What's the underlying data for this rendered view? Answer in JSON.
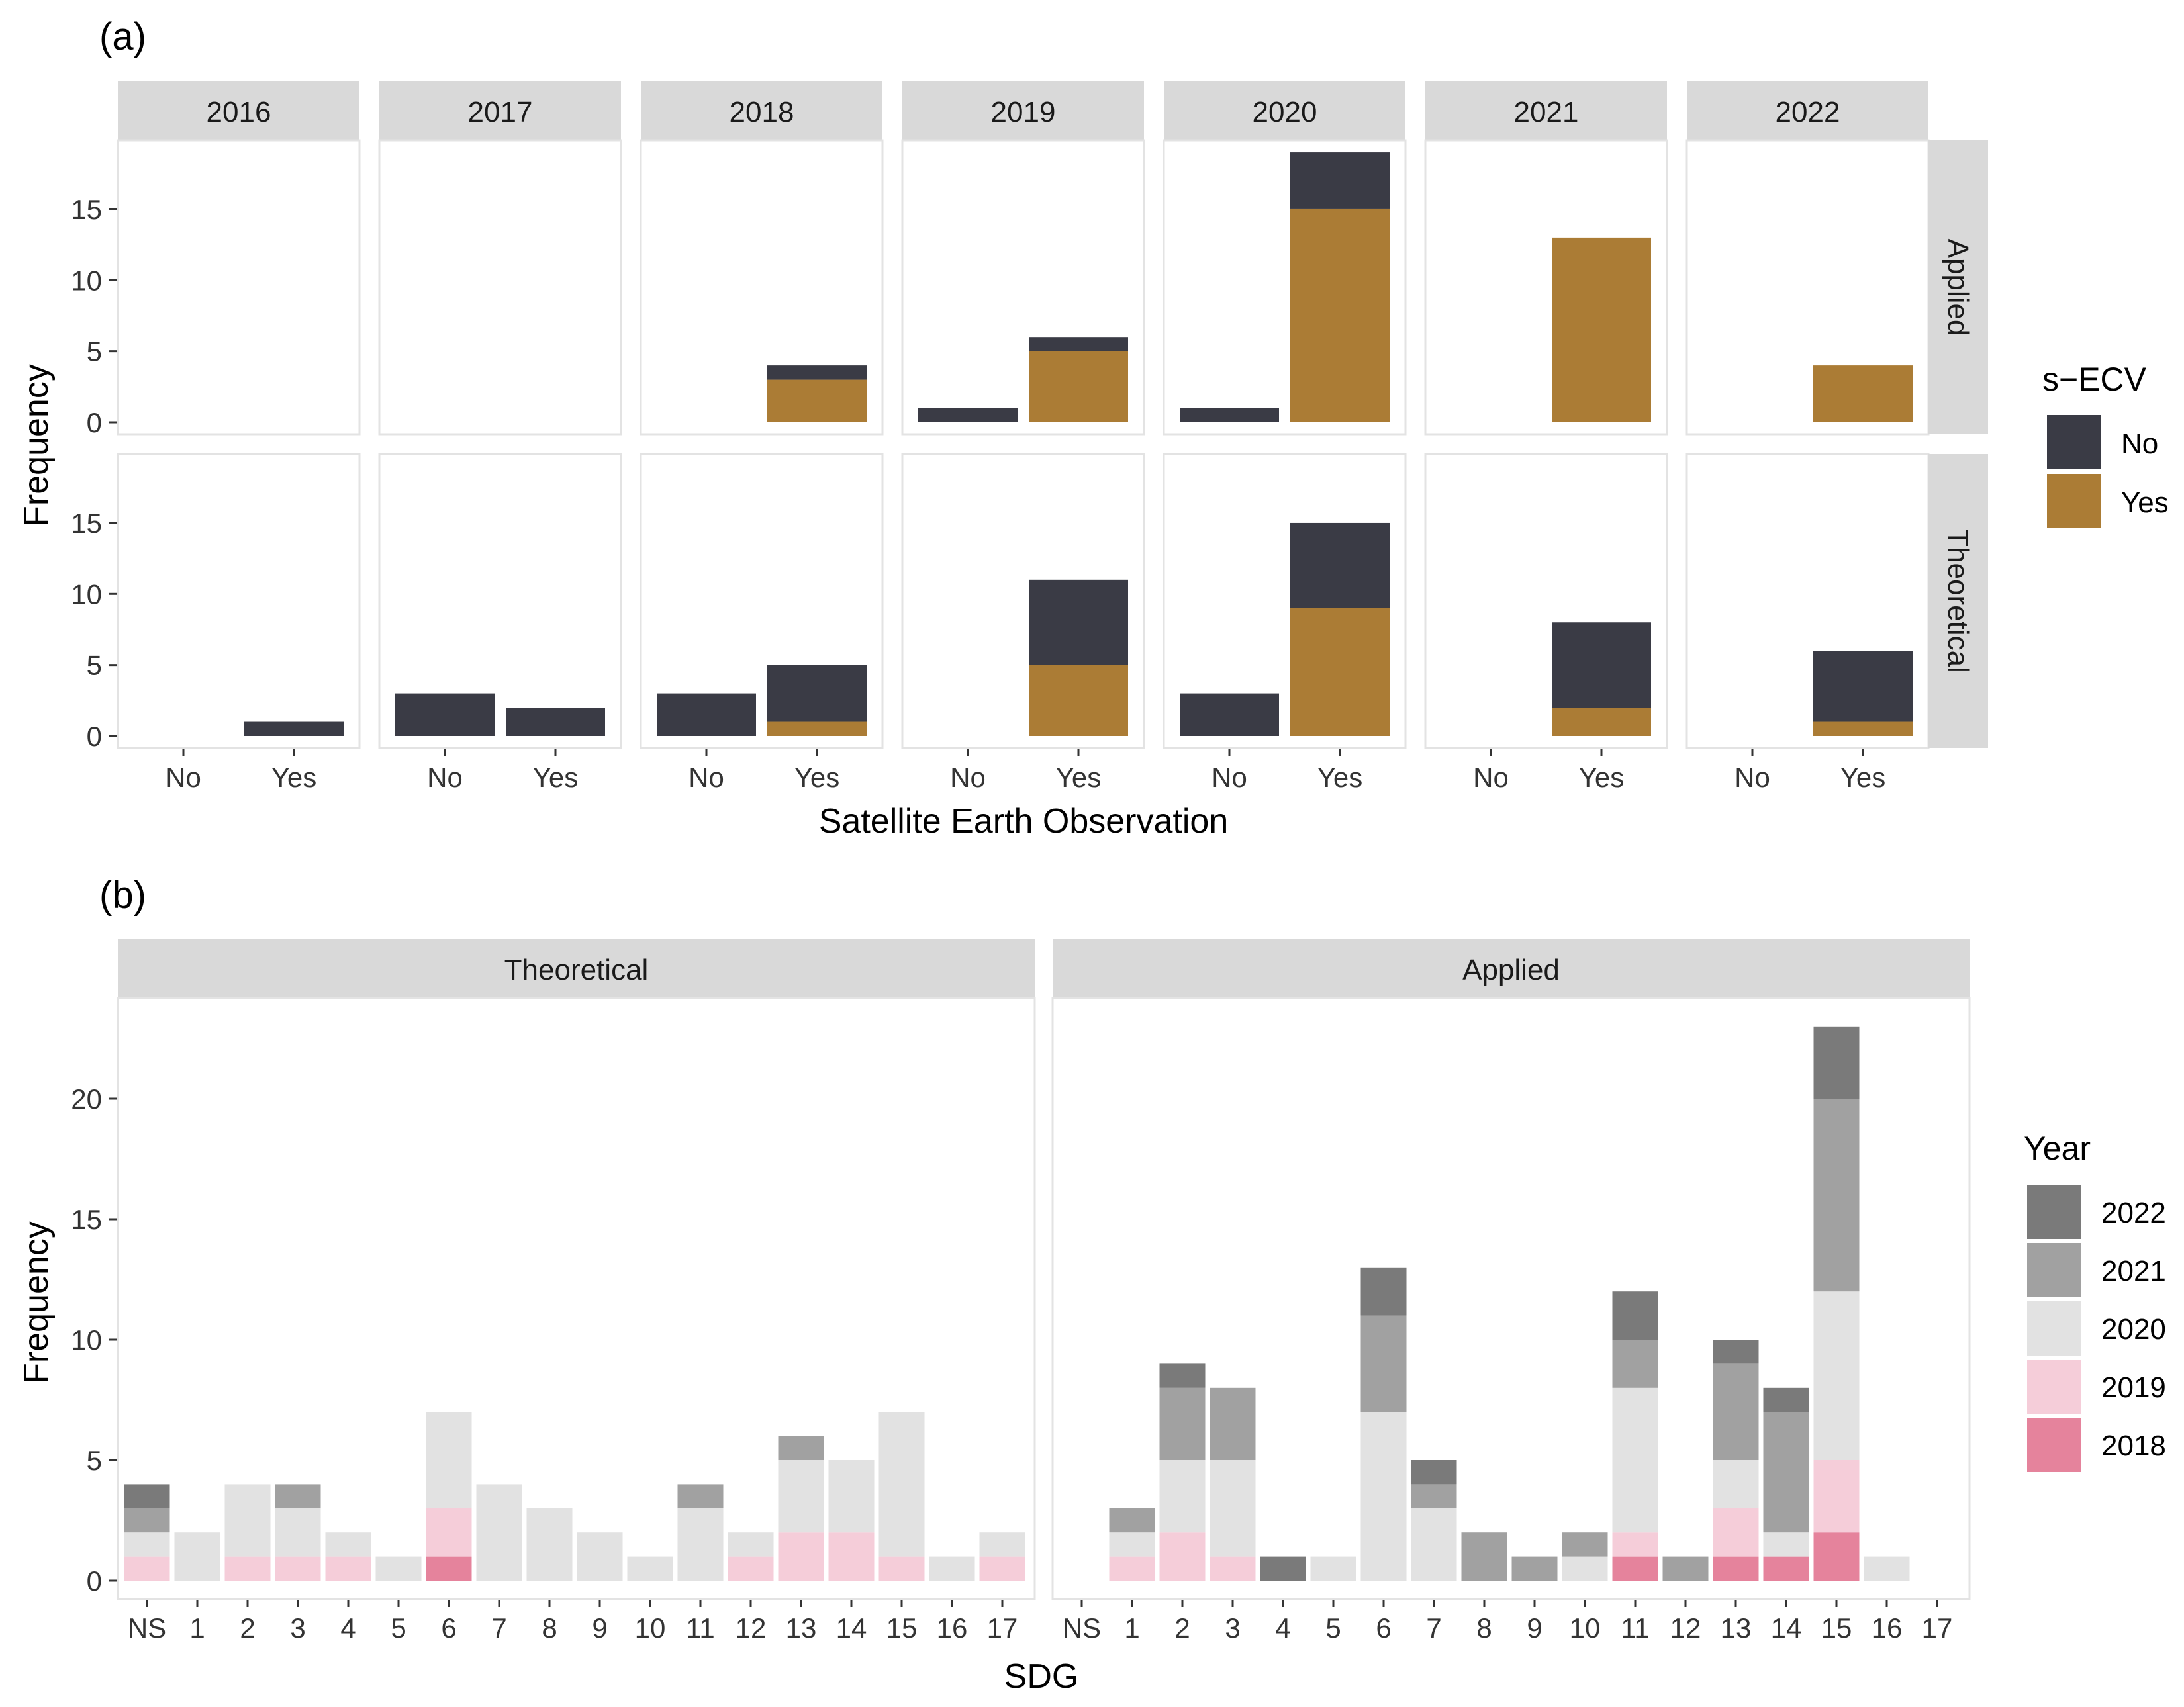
{
  "figure": {
    "panel_a_tag": "(a)",
    "panel_b_tag": "(b)"
  },
  "colors": {
    "no": "#3a3b45",
    "yes": "#ab7c35",
    "y2022": "#7a7a7a",
    "y2021": "#a1a1a1",
    "y2020": "#e2e2e2",
    "y2019": "#f5cdd9",
    "y2018": "#e5839c"
  },
  "chart_data": [
    {
      "type": "bar",
      "stacked": true,
      "title": "(a)",
      "xlabel": "Satellite Earth Observation",
      "ylabel": "Frequency",
      "ylim": [
        0,
        19.5
      ],
      "yticks": [
        0,
        5,
        10,
        15
      ],
      "facet_cols": [
        "2016",
        "2017",
        "2018",
        "2019",
        "2020",
        "2021",
        "2022"
      ],
      "facet_rows": [
        "Applied",
        "Theoretical"
      ],
      "categories": [
        "No",
        "Yes"
      ],
      "legend": {
        "title": "s−ECV",
        "labels": [
          "No",
          "Yes"
        ],
        "position": "right"
      },
      "panels": [
        {
          "year": "2016",
          "study": "Applied",
          "bars": [
            {
              "x": "No",
              "No": 0,
              "Yes": 0
            },
            {
              "x": "Yes",
              "No": 0,
              "Yes": 0
            }
          ]
        },
        {
          "year": "2017",
          "study": "Applied",
          "bars": [
            {
              "x": "No",
              "No": 0,
              "Yes": 0
            },
            {
              "x": "Yes",
              "No": 0,
              "Yes": 0
            }
          ]
        },
        {
          "year": "2018",
          "study": "Applied",
          "bars": [
            {
              "x": "No",
              "No": 0,
              "Yes": 0
            },
            {
              "x": "Yes",
              "No": 1,
              "Yes": 3
            }
          ]
        },
        {
          "year": "2019",
          "study": "Applied",
          "bars": [
            {
              "x": "No",
              "No": 1,
              "Yes": 0
            },
            {
              "x": "Yes",
              "No": 1,
              "Yes": 5
            }
          ]
        },
        {
          "year": "2020",
          "study": "Applied",
          "bars": [
            {
              "x": "No",
              "No": 1,
              "Yes": 0
            },
            {
              "x": "Yes",
              "No": 4,
              "Yes": 15
            }
          ]
        },
        {
          "year": "2021",
          "study": "Applied",
          "bars": [
            {
              "x": "No",
              "No": 0,
              "Yes": 0
            },
            {
              "x": "Yes",
              "No": 0,
              "Yes": 13
            }
          ]
        },
        {
          "year": "2022",
          "study": "Applied",
          "bars": [
            {
              "x": "No",
              "No": 0,
              "Yes": 0
            },
            {
              "x": "Yes",
              "No": 0,
              "Yes": 4
            }
          ]
        },
        {
          "year": "2016",
          "study": "Theoretical",
          "bars": [
            {
              "x": "No",
              "No": 0,
              "Yes": 0
            },
            {
              "x": "Yes",
              "No": 1,
              "Yes": 0
            }
          ]
        },
        {
          "year": "2017",
          "study": "Theoretical",
          "bars": [
            {
              "x": "No",
              "No": 3,
              "Yes": 0
            },
            {
              "x": "Yes",
              "No": 2,
              "Yes": 0
            }
          ]
        },
        {
          "year": "2018",
          "study": "Theoretical",
          "bars": [
            {
              "x": "No",
              "No": 3,
              "Yes": 0
            },
            {
              "x": "Yes",
              "No": 4,
              "Yes": 1
            }
          ]
        },
        {
          "year": "2019",
          "study": "Theoretical",
          "bars": [
            {
              "x": "No",
              "No": 0,
              "Yes": 0
            },
            {
              "x": "Yes",
              "No": 6,
              "Yes": 5
            }
          ]
        },
        {
          "year": "2020",
          "study": "Theoretical",
          "bars": [
            {
              "x": "No",
              "No": 3,
              "Yes": 0
            },
            {
              "x": "Yes",
              "No": 6,
              "Yes": 9
            }
          ]
        },
        {
          "year": "2021",
          "study": "Theoretical",
          "bars": [
            {
              "x": "No",
              "No": 0,
              "Yes": 0
            },
            {
              "x": "Yes",
              "No": 6,
              "Yes": 2
            }
          ]
        },
        {
          "year": "2022",
          "study": "Theoretical",
          "bars": [
            {
              "x": "No",
              "No": 0,
              "Yes": 0
            },
            {
              "x": "Yes",
              "No": 5,
              "Yes": 1
            }
          ]
        }
      ]
    },
    {
      "type": "bar",
      "stacked": true,
      "title": "(b)",
      "xlabel": "SDG",
      "ylabel": "Frequency",
      "ylim": [
        0,
        24
      ],
      "yticks": [
        0,
        5,
        10,
        15,
        20
      ],
      "facets": [
        "Theoretical",
        "Applied"
      ],
      "categories": [
        "NS",
        "1",
        "2",
        "3",
        "4",
        "5",
        "6",
        "7",
        "8",
        "9",
        "10",
        "11",
        "12",
        "13",
        "14",
        "15",
        "16",
        "17"
      ],
      "legend": {
        "title": "Year",
        "labels": [
          "2022",
          "2021",
          "2020",
          "2019",
          "2018"
        ],
        "position": "right"
      },
      "series_order_bottom_up": [
        "2018",
        "2019",
        "2020",
        "2021",
        "2022"
      ],
      "panels": [
        {
          "facet": "Theoretical",
          "series": [
            {
              "name": "2018",
              "values": [
                0,
                0,
                0,
                0,
                0,
                0,
                1,
                0,
                0,
                0,
                0,
                0,
                0,
                0,
                0,
                0,
                0,
                0
              ]
            },
            {
              "name": "2019",
              "values": [
                1,
                0,
                1,
                1,
                1,
                0,
                2,
                0,
                0,
                0,
                0,
                0,
                1,
                2,
                2,
                1,
                0,
                1
              ]
            },
            {
              "name": "2020",
              "values": [
                1,
                2,
                3,
                2,
                1,
                1,
                4,
                4,
                3,
                2,
                1,
                3,
                1,
                3,
                3,
                6,
                1,
                1
              ]
            },
            {
              "name": "2021",
              "values": [
                1,
                0,
                0,
                1,
                0,
                0,
                0,
                0,
                0,
                0,
                0,
                1,
                0,
                1,
                0,
                0,
                0,
                0
              ]
            },
            {
              "name": "2022",
              "values": [
                1,
                0,
                0,
                0,
                0,
                0,
                0,
                0,
                0,
                0,
                0,
                0,
                0,
                0,
                0,
                0,
                0,
                0
              ]
            }
          ]
        },
        {
          "facet": "Applied",
          "series": [
            {
              "name": "2018",
              "values": [
                0,
                0,
                0,
                0,
                0,
                0,
                0,
                0,
                0,
                0,
                0,
                1,
                0,
                1,
                1,
                2,
                0,
                0
              ]
            },
            {
              "name": "2019",
              "values": [
                0,
                1,
                2,
                1,
                0,
                0,
                0,
                0,
                0,
                0,
                0,
                1,
                0,
                2,
                0,
                3,
                0,
                0
              ]
            },
            {
              "name": "2020",
              "values": [
                0,
                1,
                3,
                4,
                0,
                1,
                7,
                3,
                0,
                0,
                1,
                6,
                0,
                2,
                1,
                7,
                1,
                0
              ]
            },
            {
              "name": "2021",
              "values": [
                0,
                1,
                3,
                3,
                0,
                0,
                4,
                1,
                2,
                1,
                1,
                2,
                1,
                4,
                5,
                8,
                0,
                0
              ]
            },
            {
              "name": "2022",
              "values": [
                0,
                0,
                1,
                0,
                1,
                0,
                2,
                1,
                0,
                0,
                0,
                2,
                0,
                1,
                1,
                3,
                0,
                0
              ]
            }
          ]
        }
      ]
    }
  ]
}
